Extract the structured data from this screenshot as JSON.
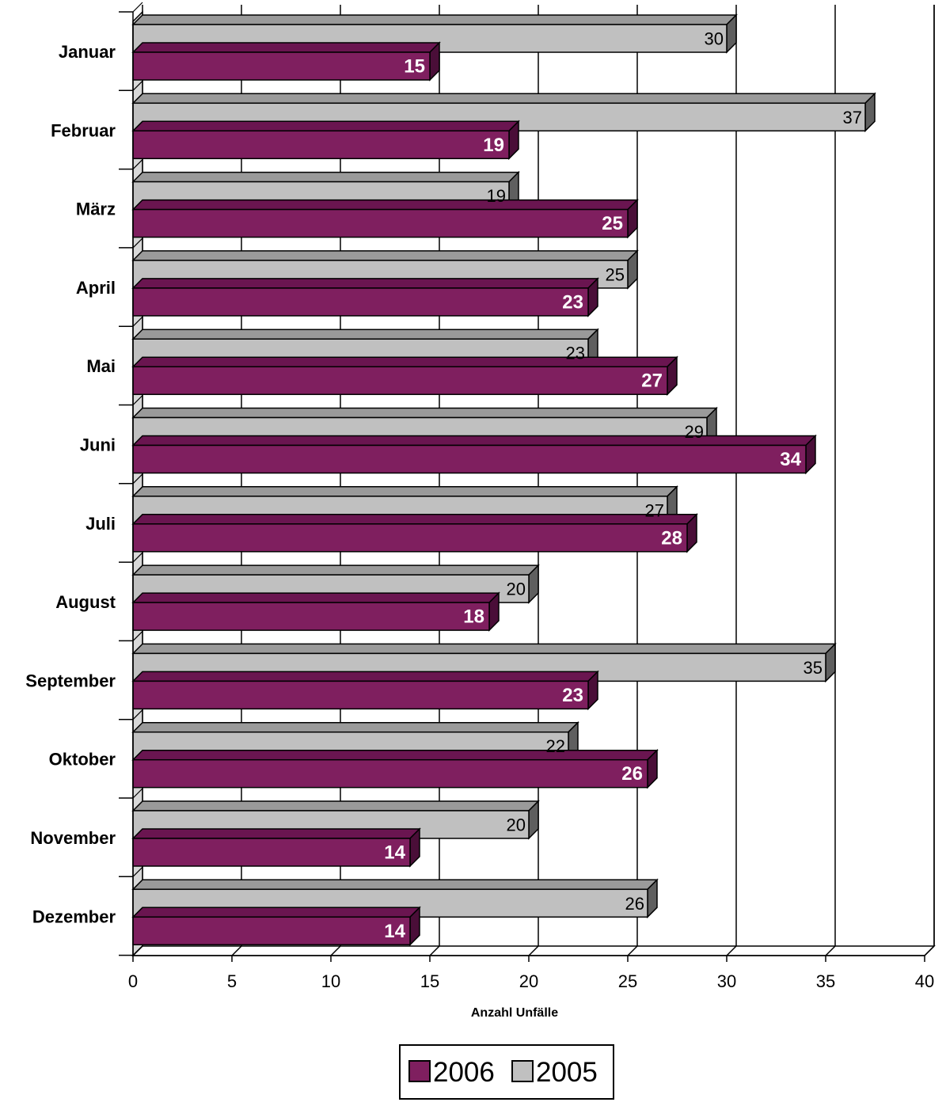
{
  "chart_data": {
    "type": "bar",
    "orientation": "horizontal",
    "three_d": true,
    "categories": [
      "Januar",
      "Februar",
      "März",
      "April",
      "Mai",
      "Juni",
      "Juli",
      "August",
      "September",
      "Oktober",
      "November",
      "Dezember"
    ],
    "series": [
      {
        "name": "2005",
        "color": "#C0C0C0",
        "values": [
          30,
          37,
          19,
          25,
          23,
          29,
          27,
          20,
          35,
          22,
          20,
          26
        ]
      },
      {
        "name": "2006",
        "color": "#7F1F5F",
        "values": [
          15,
          19,
          25,
          23,
          27,
          34,
          28,
          18,
          23,
          26,
          14,
          14
        ]
      }
    ],
    "xlabel": "Anzahl Unfälle",
    "xlim": [
      0,
      40
    ],
    "xticks": [
      0,
      5,
      10,
      15,
      20,
      25,
      30,
      35,
      40
    ],
    "grid": true,
    "legend_position": "bottom-center",
    "legend_order": [
      "2006",
      "2005"
    ]
  }
}
